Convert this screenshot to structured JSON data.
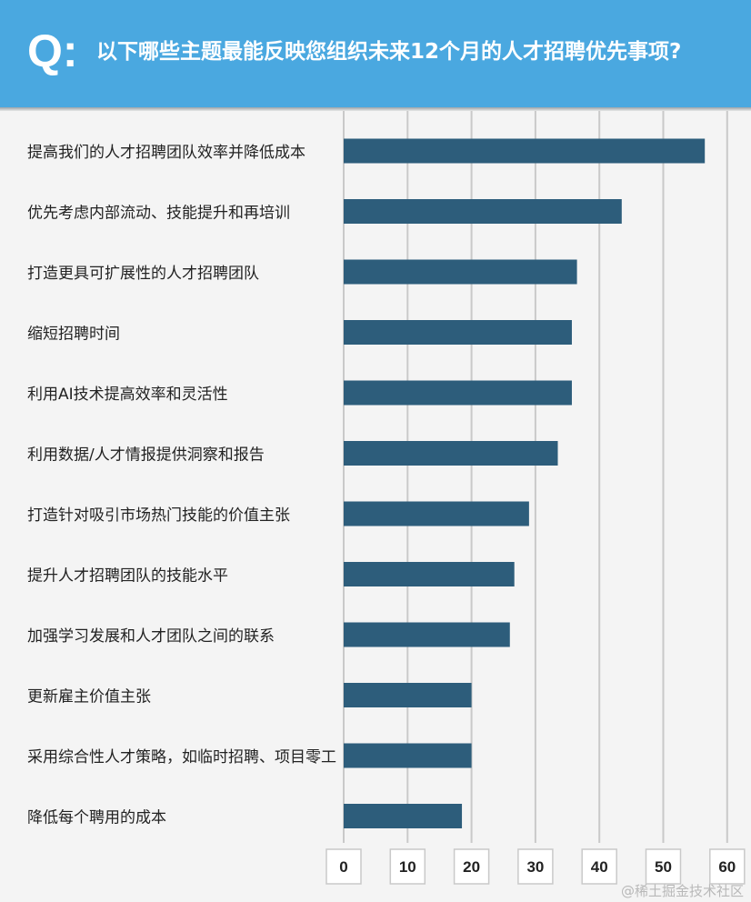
{
  "header": {
    "q_mark": "Q:",
    "title": "以下哪些主题最能反映您组织未来12个月的人才招聘优先事项?"
  },
  "chart_data": {
    "type": "bar",
    "orientation": "horizontal",
    "categories": [
      "提高我们的人才招聘团队效率并降低成本",
      "优先考虑内部流动、技能提升和再培训",
      "打造更具可扩展性的人才招聘团队",
      "缩短招聘时间",
      "利用AI技术提高效率和灵活性",
      "利用数据/人才情报提供洞察和报告",
      "打造针对吸引市场热门技能的价值主张",
      "提升人才招聘团队的技能水平",
      "加强学习发展和人才团队之间的联系",
      "更新雇主价值主张",
      "采用综合性人才策略，如临时招聘、项目零工",
      "降低每个聘用的成本"
    ],
    "values": [
      56.5,
      43.5,
      36.5,
      35.7,
      35.7,
      33.5,
      29,
      26.7,
      26,
      20,
      20,
      18.5
    ],
    "xticks": [
      "0",
      "10",
      "20",
      "30",
      "40",
      "50",
      "60"
    ],
    "xlim": [
      0,
      60
    ],
    "grid": true,
    "bar_color": "#2d5d7b"
  },
  "watermark": "@稀土掘金技术社区"
}
